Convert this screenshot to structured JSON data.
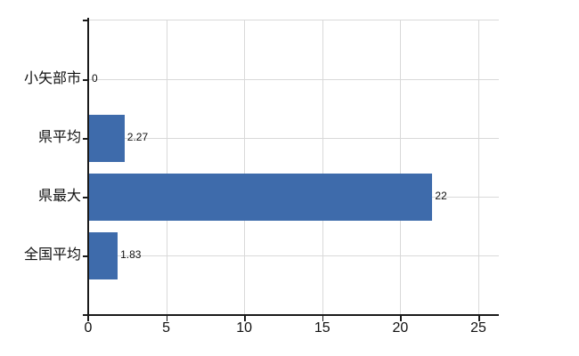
{
  "chart_data": {
    "type": "bar",
    "orientation": "horizontal",
    "title": "",
    "xlabel": "",
    "ylabel": "",
    "categories": [
      "小矢部市",
      "県平均",
      "県最大",
      "全国平均"
    ],
    "values": [
      0,
      2.27,
      22,
      1.83
    ],
    "value_labels": [
      "0",
      "2.27",
      "22",
      "1.83"
    ],
    "x_ticks": [
      0,
      5,
      10,
      15,
      20,
      25
    ],
    "x_tick_labels": [
      "0",
      "5",
      "10",
      "15",
      "20",
      "25"
    ],
    "xlim": [
      0,
      26.3
    ],
    "grid": true,
    "legend": false,
    "colors": {
      "bar": "#3e6bab",
      "gridline": "#d9d9d9",
      "axis": "#1a1a1a",
      "text": "#111111",
      "background": "#ffffff"
    }
  }
}
